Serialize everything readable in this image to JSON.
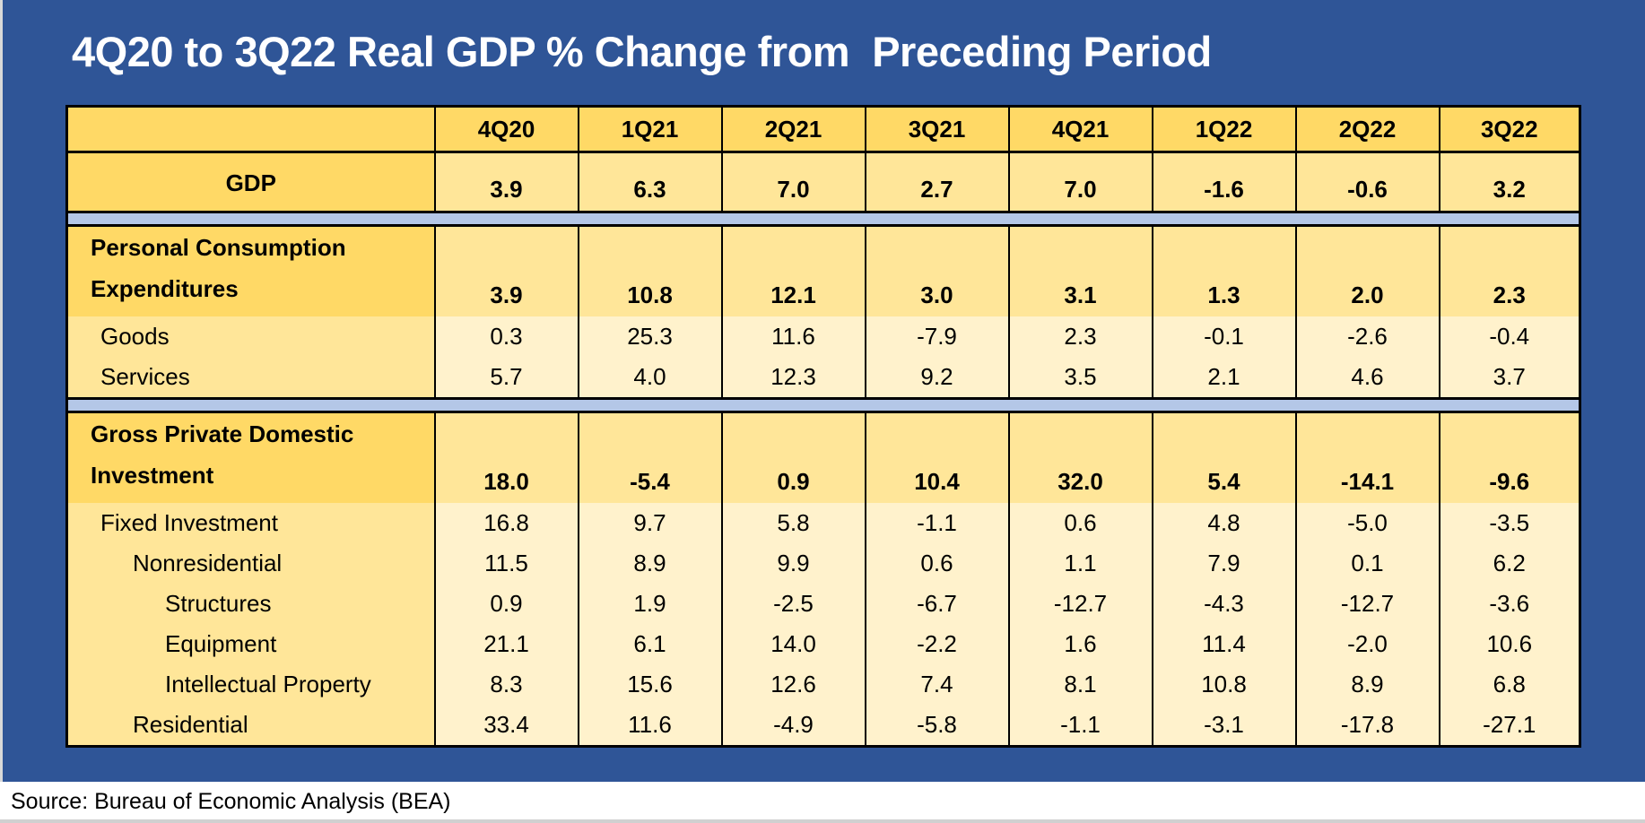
{
  "title": "4Q20 to 3Q22 Real GDP % Change from  Preceding Period",
  "columns": [
    "4Q20",
    "1Q21",
    "2Q21",
    "3Q21",
    "4Q21",
    "1Q22",
    "2Q22",
    "3Q22"
  ],
  "rows": [
    {
      "label": "GDP",
      "type": "gdp",
      "indent": 0,
      "values": [
        "3.9",
        "6.3",
        "7.0",
        "2.7",
        "7.0",
        "-1.6",
        "-0.6",
        "3.2"
      ]
    },
    {
      "type": "sep"
    },
    {
      "label": "Personal Consumption Expenditures",
      "type": "big",
      "indent": 0,
      "values": [
        "3.9",
        "10.8",
        "12.1",
        "3.0",
        "3.1",
        "1.3",
        "2.0",
        "2.3"
      ]
    },
    {
      "label": "Goods",
      "type": "sub",
      "indent": 1,
      "values": [
        "0.3",
        "25.3",
        "11.6",
        "-7.9",
        "2.3",
        "-0.1",
        "-2.6",
        "-0.4"
      ]
    },
    {
      "label": "Services",
      "type": "sub",
      "indent": 1,
      "values": [
        "5.7",
        "4.0",
        "12.3",
        "9.2",
        "3.5",
        "2.1",
        "4.6",
        "3.7"
      ]
    },
    {
      "type": "sep"
    },
    {
      "label": "Gross Private Domestic Investment",
      "type": "big",
      "indent": 0,
      "values": [
        "18.0",
        "-5.4",
        "0.9",
        "10.4",
        "32.0",
        "5.4",
        "-14.1",
        "-9.6"
      ]
    },
    {
      "label": "Fixed Investment",
      "type": "sub",
      "indent": 1,
      "values": [
        "16.8",
        "9.7",
        "5.8",
        "-1.1",
        "0.6",
        "4.8",
        "-5.0",
        "-3.5"
      ]
    },
    {
      "label": "Nonresidential",
      "type": "sub",
      "indent": 2,
      "values": [
        "11.5",
        "8.9",
        "9.9",
        "0.6",
        "1.1",
        "7.9",
        "0.1",
        "6.2"
      ]
    },
    {
      "label": "Structures",
      "type": "sub",
      "indent": 3,
      "values": [
        "0.9",
        "1.9",
        "-2.5",
        "-6.7",
        "-12.7",
        "-4.3",
        "-12.7",
        "-3.6"
      ]
    },
    {
      "label": "Equipment",
      "type": "sub",
      "indent": 3,
      "values": [
        "21.1",
        "6.1",
        "14.0",
        "-2.2",
        "1.6",
        "11.4",
        "-2.0",
        "10.6"
      ]
    },
    {
      "label": "Intellectual Property",
      "type": "sub",
      "indent": 3,
      "values": [
        "8.3",
        "15.6",
        "12.6",
        "7.4",
        "8.1",
        "10.8",
        "8.9",
        "6.8"
      ]
    },
    {
      "label": "Residential",
      "type": "sub",
      "indent": 2,
      "values": [
        "33.4",
        "11.6",
        "-4.9",
        "-5.8",
        "-1.1",
        "-3.1",
        "-17.8",
        "-27.1"
      ]
    }
  ],
  "source": "Source: Bureau of Economic Analysis (BEA)",
  "colors": {
    "background": "#2F5597",
    "header": "#FFD966",
    "mid": "#FFE699",
    "light": "#FFF2CC",
    "separator": "#B4C7E7"
  }
}
